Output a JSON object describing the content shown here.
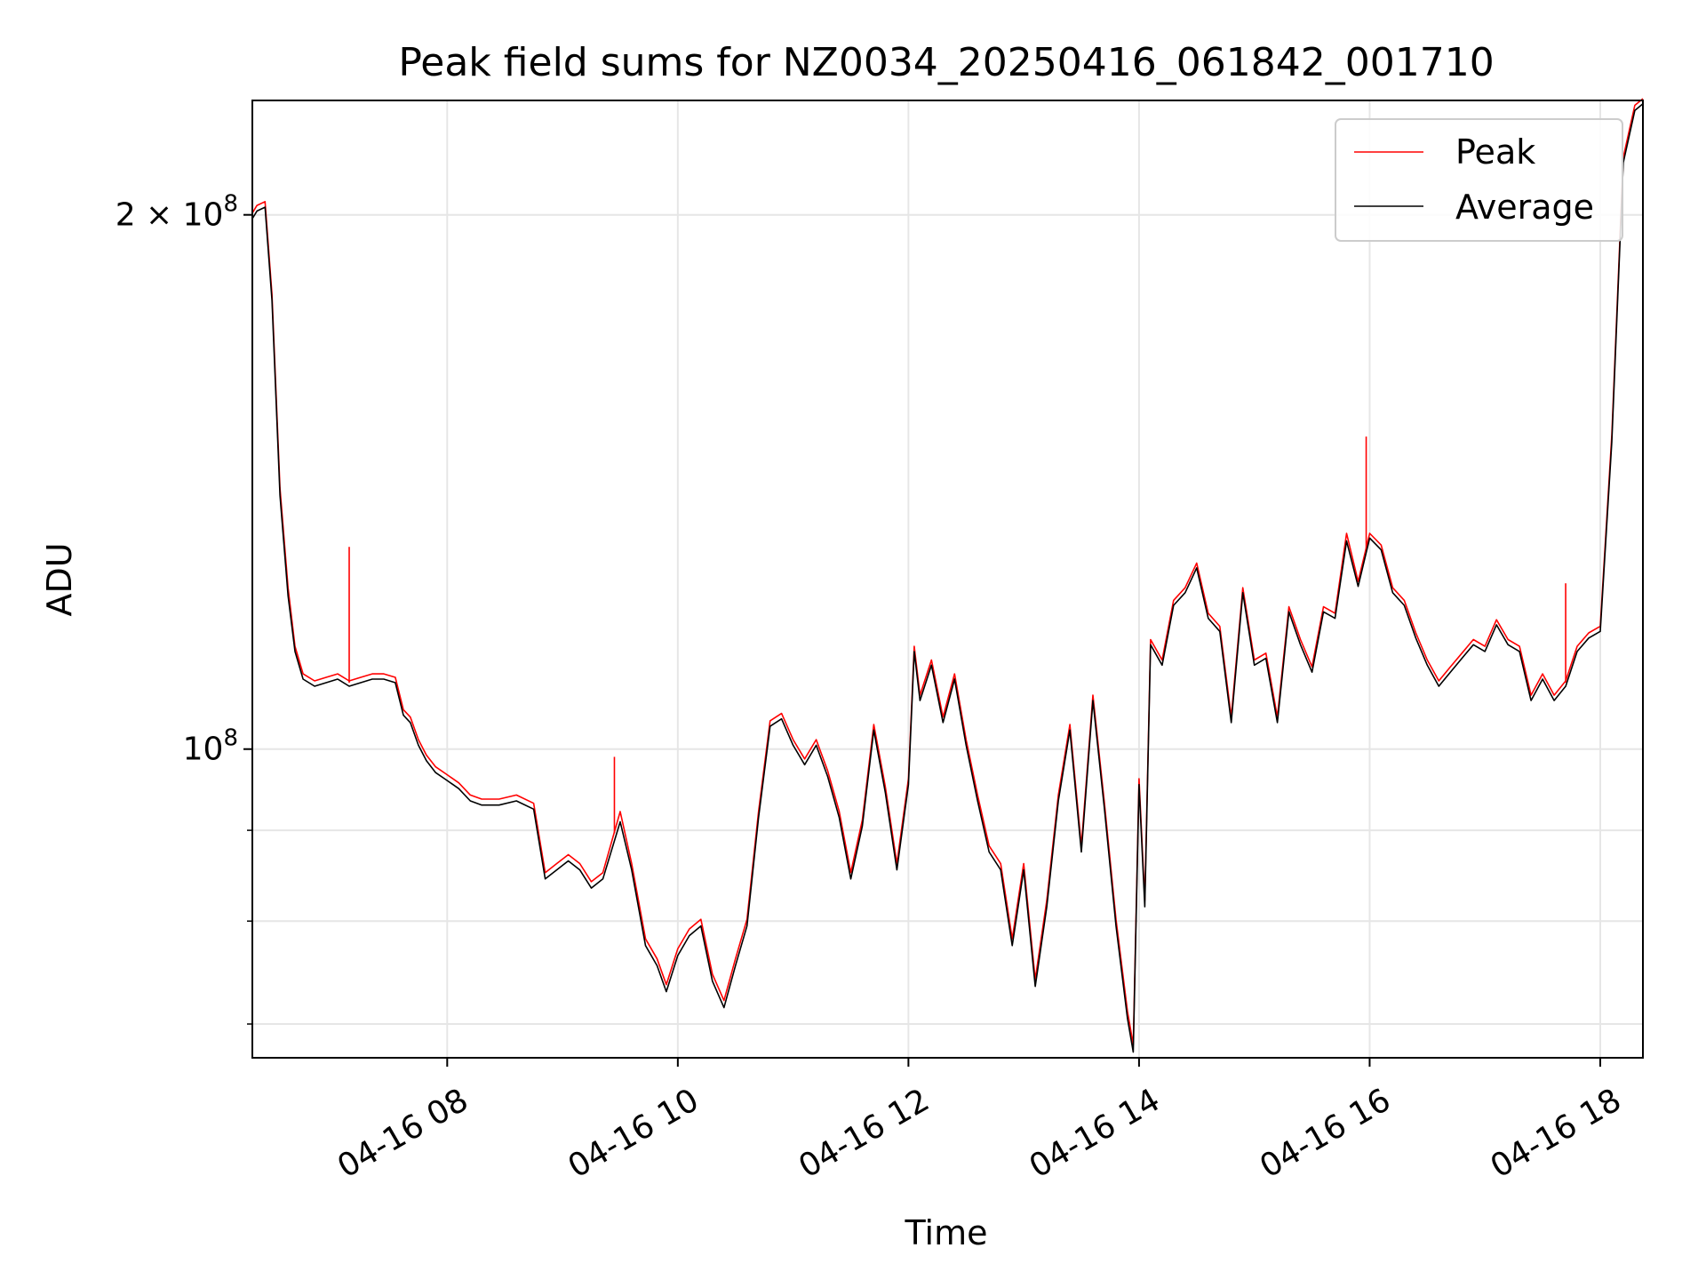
{
  "chart_data": {
    "type": "line",
    "title": "Peak field sums for NZ0034_20250416_061842_001710",
    "xlabel": "Time",
    "ylabel": "ADU",
    "x_unit": "hour of day (2025-04-16)",
    "xlim": [
      6.31,
      18.37
    ],
    "ylim": [
      67000000,
      232000000
    ],
    "yscale": "log",
    "grid": true,
    "legend_position": "upper right",
    "x_ticks": [
      {
        "value": 8,
        "label": "04-16 08"
      },
      {
        "value": 10,
        "label": "04-16 10"
      },
      {
        "value": 12,
        "label": "04-16 12"
      },
      {
        "value": 14,
        "label": "04-16 14"
      },
      {
        "value": 16,
        "label": "04-16 16"
      },
      {
        "value": 18,
        "label": "04-16 18"
      }
    ],
    "y_ticks": [
      {
        "value": 100000000,
        "mantissa": "",
        "exponent": "8",
        "base": "10"
      },
      {
        "value": 200000000,
        "mantissa": "2 × ",
        "exponent": "8",
        "base": "10"
      }
    ],
    "y_minor_ticks": [
      70000000,
      80000000,
      90000000
    ],
    "series": [
      {
        "name": "Peak",
        "color": "#ff0000",
        "x": [
          6.31,
          6.35,
          6.42,
          6.48,
          6.55,
          6.62,
          6.68,
          6.75,
          6.85,
          6.95,
          7.05,
          7.15,
          7.25,
          7.35,
          7.45,
          7.55,
          7.62,
          7.68,
          7.75,
          7.82,
          7.9,
          8.0,
          8.1,
          8.2,
          8.3,
          8.45,
          8.6,
          8.75,
          8.85,
          8.95,
          9.05,
          9.15,
          9.25,
          9.35,
          9.5,
          9.6,
          9.72,
          9.82,
          9.9,
          10.0,
          10.1,
          10.2,
          10.3,
          10.4,
          10.5,
          10.6,
          10.7,
          10.8,
          10.9,
          11.0,
          11.1,
          11.2,
          11.3,
          11.4,
          11.5,
          11.6,
          11.7,
          11.8,
          11.9,
          12.0,
          12.05,
          12.1,
          12.2,
          12.3,
          12.4,
          12.5,
          12.6,
          12.7,
          12.8,
          12.9,
          13.0,
          13.1,
          13.2,
          13.3,
          13.4,
          13.5,
          13.6,
          13.7,
          13.8,
          13.9,
          13.95,
          14.0,
          14.05,
          14.1,
          14.2,
          14.3,
          14.4,
          14.5,
          14.6,
          14.7,
          14.8,
          14.9,
          15.0,
          15.1,
          15.2,
          15.3,
          15.4,
          15.5,
          15.6,
          15.7,
          15.8,
          15.9,
          16.0,
          16.1,
          16.2,
          16.3,
          16.4,
          16.5,
          16.6,
          16.7,
          16.8,
          16.9,
          17.0,
          17.1,
          17.2,
          17.3,
          17.4,
          17.5,
          17.6,
          17.7,
          17.8,
          17.9,
          18.0,
          18.1,
          18.2,
          18.3,
          18.37
        ],
        "y": [
          200000000,
          202000000,
          203000000,
          180000000,
          140000000,
          123000000,
          114000000,
          110000000,
          109000000,
          109500000,
          110000000,
          109000000,
          109500000,
          110000000,
          110000000,
          109500000,
          105000000,
          104000000,
          101000000,
          99000000,
          97500000,
          96500000,
          95500000,
          94000000,
          93500000,
          93500000,
          94000000,
          93000000,
          85000000,
          86000000,
          87000000,
          86000000,
          84000000,
          85000000,
          92000000,
          86000000,
          78000000,
          76000000,
          73500000,
          77000000,
          79000000,
          80000000,
          74500000,
          72000000,
          76000000,
          80000000,
          92000000,
          103500000,
          104500000,
          101000000,
          98500000,
          101000000,
          97000000,
          92000000,
          85000000,
          91000000,
          103000000,
          95000000,
          86000000,
          96000000,
          114000000,
          107000000,
          112000000,
          104000000,
          110000000,
          101000000,
          94000000,
          88000000,
          86000000,
          78000000,
          86000000,
          74000000,
          82000000,
          94000000,
          103000000,
          88000000,
          107000000,
          93000000,
          80000000,
          71000000,
          68000000,
          96000000,
          82000000,
          115000000,
          112000000,
          121000000,
          123000000,
          127000000,
          119000000,
          117000000,
          104000000,
          123000000,
          112000000,
          113000000,
          104000000,
          120000000,
          115000000,
          111000000,
          120000000,
          119000000,
          132000000,
          124000000,
          132000000,
          130000000,
          123000000,
          121000000,
          116000000,
          112000000,
          109000000,
          111000000,
          113000000,
          115000000,
          114000000,
          118000000,
          115000000,
          114000000,
          107000000,
          110000000,
          107000000,
          109000000,
          114000000,
          116000000,
          117000000,
          150000000,
          215000000,
          230000000,
          232000000
        ],
        "spikes": [
          {
            "x": 7.15,
            "y": 130000000
          },
          {
            "x": 9.45,
            "y": 99000000
          },
          {
            "x": 15.97,
            "y": 150000000
          },
          {
            "x": 17.7,
            "y": 124000000
          }
        ]
      },
      {
        "name": "Average",
        "color": "#000000",
        "x": [
          6.31,
          6.35,
          6.42,
          6.48,
          6.55,
          6.62,
          6.68,
          6.75,
          6.85,
          6.95,
          7.05,
          7.15,
          7.25,
          7.35,
          7.45,
          7.55,
          7.62,
          7.68,
          7.75,
          7.82,
          7.9,
          8.0,
          8.1,
          8.2,
          8.3,
          8.45,
          8.6,
          8.75,
          8.85,
          8.95,
          9.05,
          9.15,
          9.25,
          9.35,
          9.5,
          9.6,
          9.72,
          9.82,
          9.9,
          10.0,
          10.1,
          10.2,
          10.3,
          10.4,
          10.5,
          10.6,
          10.7,
          10.8,
          10.9,
          11.0,
          11.1,
          11.2,
          11.3,
          11.4,
          11.5,
          11.6,
          11.7,
          11.8,
          11.9,
          12.0,
          12.05,
          12.1,
          12.2,
          12.3,
          12.4,
          12.5,
          12.6,
          12.7,
          12.8,
          12.9,
          13.0,
          13.1,
          13.2,
          13.3,
          13.4,
          13.5,
          13.6,
          13.7,
          13.8,
          13.9,
          13.95,
          14.0,
          14.05,
          14.1,
          14.2,
          14.3,
          14.4,
          14.5,
          14.6,
          14.7,
          14.8,
          14.9,
          15.0,
          15.1,
          15.2,
          15.3,
          15.4,
          15.5,
          15.6,
          15.7,
          15.8,
          15.9,
          16.0,
          16.1,
          16.2,
          16.3,
          16.4,
          16.5,
          16.6,
          16.7,
          16.8,
          16.9,
          17.0,
          17.1,
          17.2,
          17.3,
          17.4,
          17.5,
          17.6,
          17.7,
          17.8,
          17.9,
          18.0,
          18.1,
          18.2,
          18.3,
          18.37
        ],
        "y": [
          199000000,
          201000000,
          202000000,
          179000000,
          139000000,
          122000000,
          113500000,
          109500000,
          108500000,
          109000000,
          109500000,
          108500000,
          109000000,
          109500000,
          109500000,
          109000000,
          104500000,
          103500000,
          100500000,
          98500000,
          97000000,
          96000000,
          95000000,
          93500000,
          93000000,
          93000000,
          93500000,
          92500000,
          84500000,
          85500000,
          86500000,
          85500000,
          83500000,
          84500000,
          91000000,
          85500000,
          77500000,
          75500000,
          73000000,
          76500000,
          78500000,
          79500000,
          74000000,
          71500000,
          75500000,
          79500000,
          91500000,
          103000000,
          104000000,
          100500000,
          98000000,
          100500000,
          96500000,
          91500000,
          84500000,
          90500000,
          102500000,
          94500000,
          85500000,
          95500000,
          113500000,
          106500000,
          111500000,
          103500000,
          109500000,
          100500000,
          93500000,
          87500000,
          85500000,
          77500000,
          85500000,
          73500000,
          81500000,
          93500000,
          102500000,
          87500000,
          106500000,
          92500000,
          79500000,
          70500000,
          67500000,
          95500000,
          81500000,
          114500000,
          111500000,
          120500000,
          122500000,
          126500000,
          118500000,
          116500000,
          103500000,
          122500000,
          111500000,
          112500000,
          103500000,
          119500000,
          114500000,
          110500000,
          119500000,
          118500000,
          131000000,
          123500000,
          131500000,
          129500000,
          122500000,
          120500000,
          115500000,
          111500000,
          108500000,
          110500000,
          112500000,
          114500000,
          113500000,
          117500000,
          114500000,
          113500000,
          106500000,
          109500000,
          106500000,
          108500000,
          113500000,
          115500000,
          116500000,
          149000000,
          214000000,
          229000000,
          231000000
        ]
      }
    ]
  }
}
